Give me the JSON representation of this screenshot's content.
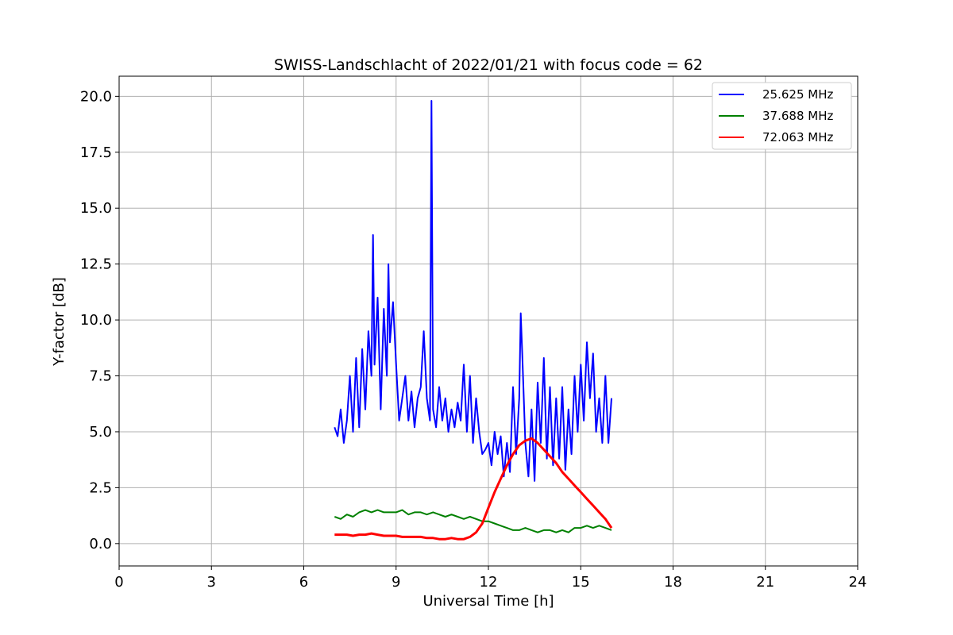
{
  "chart_data": {
    "type": "line",
    "title": "SWISS-Landschlacht of 2022/01/21 with focus code = 62",
    "xlabel": "Universal Time [h]",
    "ylabel": "Y-factor [dB]",
    "xlim": [
      0,
      24
    ],
    "ylim": [
      -1,
      20.9
    ],
    "xticks": [
      0,
      3,
      6,
      9,
      12,
      15,
      18,
      21,
      24
    ],
    "xtick_labels": [
      "0",
      "3",
      "6",
      "9",
      "12",
      "15",
      "18",
      "21",
      "24"
    ],
    "yticks": [
      0,
      2.5,
      5,
      7.5,
      10,
      12.5,
      15,
      17.5,
      20
    ],
    "ytick_labels": [
      "0.0",
      "2.5",
      "5.0",
      "7.5",
      "10.0",
      "12.5",
      "15.0",
      "17.5",
      "20.0"
    ],
    "grid": true,
    "legend_position": "top-right",
    "series": [
      {
        "name": "25.625 MHz",
        "color": "#0000ff",
        "x": [
          7.0,
          7.1,
          7.2,
          7.3,
          7.4,
          7.5,
          7.6,
          7.7,
          7.8,
          7.9,
          8.0,
          8.1,
          8.2,
          8.25,
          8.3,
          8.4,
          8.5,
          8.6,
          8.7,
          8.75,
          8.8,
          8.9,
          9.0,
          9.1,
          9.2,
          9.3,
          9.4,
          9.5,
          9.6,
          9.7,
          9.8,
          9.9,
          10.0,
          10.1,
          10.15,
          10.2,
          10.3,
          10.4,
          10.5,
          10.6,
          10.7,
          10.8,
          10.9,
          11.0,
          11.1,
          11.2,
          11.3,
          11.4,
          11.5,
          11.6,
          11.7,
          11.8,
          11.9,
          12.0,
          12.1,
          12.2,
          12.3,
          12.4,
          12.5,
          12.6,
          12.7,
          12.8,
          12.9,
          13.0,
          13.05,
          13.1,
          13.2,
          13.3,
          13.4,
          13.5,
          13.6,
          13.7,
          13.8,
          13.9,
          14.0,
          14.1,
          14.2,
          14.3,
          14.4,
          14.5,
          14.6,
          14.7,
          14.8,
          14.9,
          15.0,
          15.1,
          15.2,
          15.3,
          15.4,
          15.5,
          15.6,
          15.7,
          15.8,
          15.9,
          16.0
        ],
        "y": [
          5.2,
          4.8,
          6.0,
          4.5,
          5.5,
          7.5,
          5.0,
          8.3,
          5.2,
          8.7,
          6.0,
          9.5,
          7.5,
          13.8,
          8.0,
          11.0,
          6.0,
          10.5,
          7.5,
          12.5,
          9.0,
          10.8,
          8.0,
          5.5,
          6.5,
          7.5,
          5.5,
          6.8,
          5.2,
          6.5,
          7.0,
          9.5,
          6.5,
          5.5,
          19.8,
          6.0,
          5.2,
          7.0,
          5.5,
          6.5,
          5.0,
          6.0,
          5.2,
          6.3,
          5.5,
          8.0,
          5.0,
          7.5,
          4.5,
          6.5,
          5.0,
          4.0,
          4.2,
          4.5,
          3.5,
          5.0,
          4.0,
          4.8,
          3.0,
          4.5,
          3.2,
          7.0,
          4.0,
          6.5,
          10.3,
          8.5,
          4.5,
          3.0,
          6.0,
          2.8,
          7.2,
          4.5,
          8.3,
          3.8,
          7.0,
          3.5,
          6.5,
          3.8,
          7.0,
          3.3,
          6.0,
          4.0,
          7.5,
          5.0,
          8.0,
          5.5,
          9.0,
          6.5,
          8.5,
          5.0,
          6.5,
          4.5,
          7.5,
          4.5,
          6.5
        ]
      },
      {
        "name": "37.688 MHz",
        "color": "#008000",
        "x": [
          7.0,
          7.2,
          7.4,
          7.6,
          7.8,
          8.0,
          8.2,
          8.4,
          8.6,
          8.8,
          9.0,
          9.2,
          9.4,
          9.6,
          9.8,
          10.0,
          10.2,
          10.4,
          10.6,
          10.8,
          11.0,
          11.2,
          11.4,
          11.6,
          11.8,
          12.0,
          12.2,
          12.4,
          12.6,
          12.8,
          13.0,
          13.2,
          13.4,
          13.6,
          13.8,
          14.0,
          14.2,
          14.4,
          14.6,
          14.8,
          15.0,
          15.2,
          15.4,
          15.6,
          15.8,
          16.0
        ],
        "y": [
          1.2,
          1.1,
          1.3,
          1.2,
          1.4,
          1.5,
          1.4,
          1.5,
          1.4,
          1.4,
          1.4,
          1.5,
          1.3,
          1.4,
          1.4,
          1.3,
          1.4,
          1.3,
          1.2,
          1.3,
          1.2,
          1.1,
          1.2,
          1.1,
          1.0,
          1.0,
          0.9,
          0.8,
          0.7,
          0.6,
          0.6,
          0.7,
          0.6,
          0.5,
          0.6,
          0.6,
          0.5,
          0.6,
          0.5,
          0.7,
          0.7,
          0.8,
          0.7,
          0.8,
          0.7,
          0.6
        ]
      },
      {
        "name": "72.063 MHz",
        "color": "#ff0000",
        "x": [
          7.0,
          7.2,
          7.4,
          7.6,
          7.8,
          8.0,
          8.2,
          8.4,
          8.6,
          8.8,
          9.0,
          9.2,
          9.4,
          9.6,
          9.8,
          10.0,
          10.2,
          10.4,
          10.6,
          10.8,
          11.0,
          11.2,
          11.4,
          11.6,
          11.8,
          12.0,
          12.2,
          12.4,
          12.6,
          12.8,
          13.0,
          13.2,
          13.4,
          13.6,
          13.8,
          14.0,
          14.2,
          14.4,
          14.6,
          14.8,
          15.0,
          15.2,
          15.4,
          15.6,
          15.8,
          16.0
        ],
        "y": [
          0.4,
          0.4,
          0.4,
          0.35,
          0.4,
          0.4,
          0.45,
          0.4,
          0.35,
          0.35,
          0.35,
          0.3,
          0.3,
          0.3,
          0.3,
          0.25,
          0.25,
          0.2,
          0.2,
          0.25,
          0.2,
          0.2,
          0.3,
          0.5,
          0.9,
          1.6,
          2.3,
          2.9,
          3.5,
          4.0,
          4.4,
          4.6,
          4.7,
          4.5,
          4.2,
          3.9,
          3.6,
          3.2,
          2.9,
          2.6,
          2.3,
          2.0,
          1.7,
          1.4,
          1.1,
          0.7
        ]
      }
    ]
  }
}
